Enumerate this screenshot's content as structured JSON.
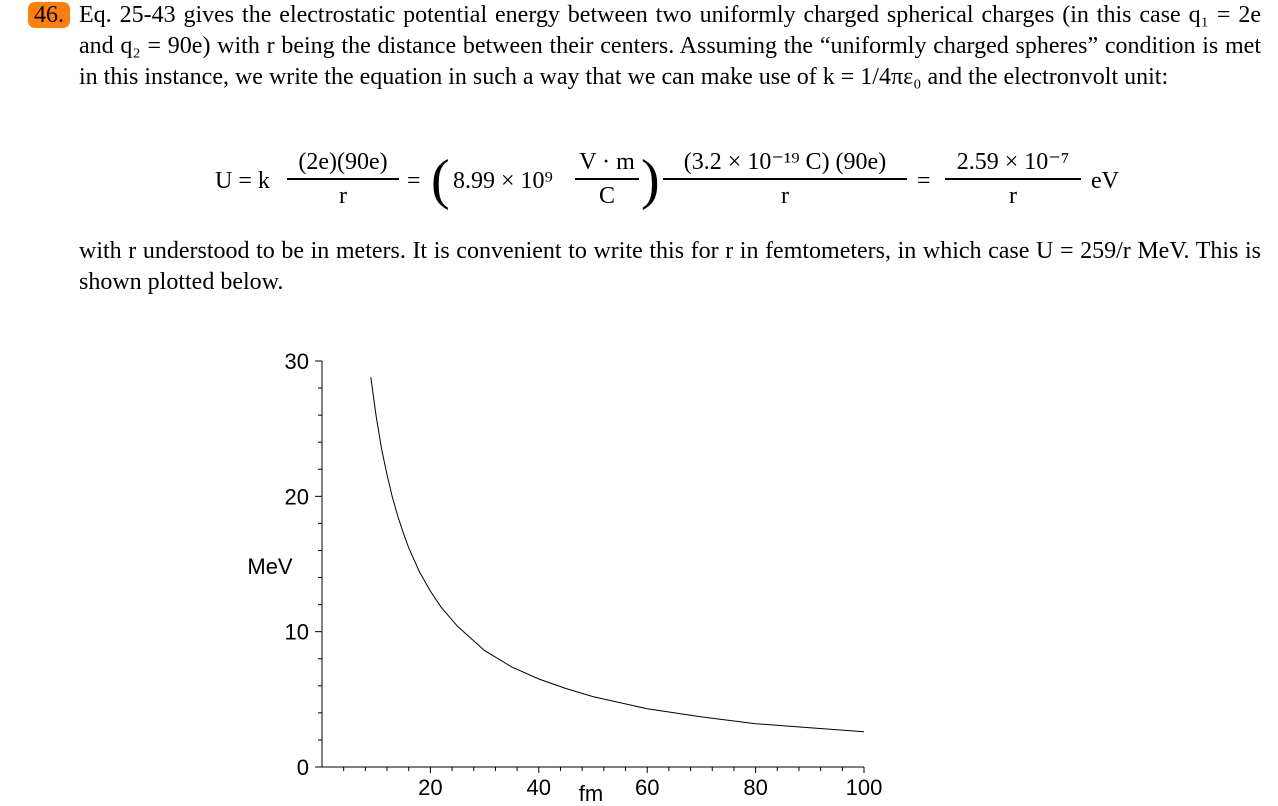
{
  "problem_number": "46.",
  "paragraph1": "Eq. 25-43 gives the electrostatic potential energy between two uniformly charged spherical charges (in this case q₁ = 2e and q₂ = 90e) with r being the distance between their centers. Assuming the “uniformly charged spheres” condition is met in this instance, we write the equation in such a way that we can make use of k = 1/4πε₀ and the electronvolt unit:",
  "equation": {
    "lhs": "U = k",
    "frac1_num": "(2e)(90e)",
    "frac1_den": "r",
    "eq1": "=",
    "const": "8.99 × 10⁹",
    "frac2_num": "V · m",
    "frac2_den": "C",
    "frac3_num": "(3.2 × 10⁻¹⁹ C) (90e)",
    "frac3_den": "r",
    "eq2": "=",
    "frac4_num": "2.59 × 10⁻⁷",
    "frac4_den": "r",
    "unit": "eV"
  },
  "paragraph2": "with r understood to be in meters. It is convenient to write this for r in femtometers, in which case U = 259/r MeV. This is shown plotted below.",
  "chart_data": {
    "type": "line",
    "xlabel": "fm",
    "ylabel": "MeV",
    "xlim": [
      0,
      100
    ],
    "ylim": [
      0,
      30
    ],
    "xticks": [
      "20",
      "40",
      "60",
      "80",
      "100"
    ],
    "yticks": [
      "0",
      "10",
      "20",
      "30"
    ],
    "series": [
      {
        "x": [
          9,
          10,
          11,
          12,
          13,
          14,
          15,
          16,
          18,
          20,
          22,
          25,
          30,
          35,
          40,
          45,
          50,
          60,
          70,
          80,
          90,
          100
        ],
        "y": [
          28.8,
          25.9,
          23.5,
          21.6,
          19.9,
          18.5,
          17.3,
          16.2,
          14.4,
          13.0,
          11.8,
          10.4,
          8.6,
          7.4,
          6.5,
          5.8,
          5.2,
          4.3,
          3.7,
          3.2,
          2.9,
          2.6
        ]
      }
    ]
  }
}
